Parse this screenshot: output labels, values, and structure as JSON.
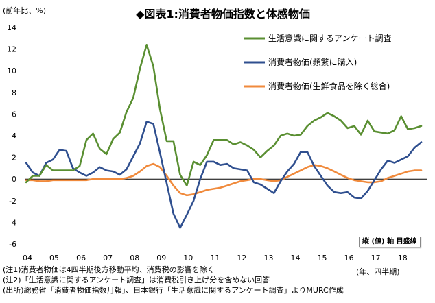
{
  "unit_label": "(前年比、%)",
  "axis_badge": "縦 (値) 軸 目盛線",
  "time_unit": "(年、四半期)",
  "notes": [
    "(注1)消費者物価は4四半期後方移動平均、消費税の影響を除く",
    "(注2)「生活意識に関するアンケート調査」は消費税引き上げ分を含めない回答",
    "(出所)総務省「消費者物価指数月報」、日本銀行「生活意識に関するアンケート調査」よりMURC作成"
  ],
  "chart_data": {
    "type": "line",
    "title": "◆図表1:消費者物価指数と体感物価",
    "x_tick_labels": [
      "04",
      "05",
      "06",
      "07",
      "08",
      "09",
      "10",
      "11",
      "12",
      "13",
      "14",
      "15",
      "16",
      "17",
      "18"
    ],
    "y_ticks": [
      14,
      12,
      10,
      8,
      6,
      4,
      2,
      0,
      -2,
      -4,
      -6
    ],
    "ylim": [
      -6,
      14
    ],
    "grid": false,
    "legend_position": "top-right",
    "x_start": "2004Q1",
    "series": [
      {
        "name": "生活意識に関するアンケート調査",
        "color": "#5a8f32",
        "values": [
          -0.3,
          0.3,
          0.3,
          1.3,
          0.8,
          0.8,
          0.8,
          0.8,
          1.2,
          3.6,
          4.2,
          2.8,
          2.3,
          3.7,
          4.3,
          6.2,
          7.5,
          10.2,
          12.4,
          10.4,
          6.4,
          3.5,
          3.5,
          0.4,
          -0.6,
          1.6,
          1.3,
          2.2,
          3.6,
          3.6,
          3.6,
          3.2,
          3.4,
          3.1,
          2.7,
          2.0,
          2.6,
          3.1,
          4.0,
          4.2,
          4.0,
          4.1,
          4.9,
          5.4,
          5.7,
          6.1,
          5.8,
          5.4,
          4.7,
          4.9,
          4.1,
          5.4,
          4.4,
          4.3,
          4.2,
          4.5,
          5.8,
          4.6,
          4.7,
          4.9
        ]
      },
      {
        "name": "消費者物価(頻繁に購入)",
        "color": "#2f4f8f",
        "values": [
          1.5,
          0.6,
          0.3,
          1.5,
          1.8,
          2.7,
          2.6,
          1.0,
          0.6,
          0.3,
          0.6,
          1.1,
          0.8,
          0.7,
          0.4,
          0.9,
          2.1,
          3.3,
          5.3,
          5.1,
          2.4,
          -0.4,
          -3.2,
          -4.5,
          -3.3,
          -2.0,
          0.0,
          1.6,
          1.6,
          1.3,
          1.4,
          1.0,
          0.9,
          0.8,
          -0.3,
          -0.5,
          -0.9,
          -1.3,
          -0.2,
          0.7,
          1.4,
          2.5,
          2.5,
          1.2,
          0.3,
          -0.6,
          -1.2,
          -1.3,
          -1.2,
          -1.7,
          -1.8,
          -1.1,
          -0.1,
          0.9,
          1.7,
          1.5,
          1.8,
          2.1,
          2.9,
          3.4
        ]
      },
      {
        "name": "消費者物価(生鮮食品を除く総合)",
        "color": "#f08a3c",
        "values": [
          -0.1,
          -0.1,
          -0.2,
          -0.2,
          -0.1,
          -0.1,
          -0.1,
          -0.1,
          -0.1,
          -0.1,
          0.0,
          0.0,
          0.0,
          0.0,
          0.0,
          0.1,
          0.3,
          0.7,
          1.2,
          1.4,
          1.1,
          0.3,
          -0.6,
          -1.3,
          -1.5,
          -1.4,
          -1.2,
          -1.0,
          -0.9,
          -0.8,
          -0.6,
          -0.4,
          -0.2,
          -0.1,
          0.0,
          0.0,
          -0.1,
          -0.2,
          -0.1,
          0.2,
          0.5,
          0.8,
          1.1,
          1.3,
          1.2,
          1.0,
          0.7,
          0.4,
          0.1,
          -0.1,
          -0.2,
          -0.3,
          -0.3,
          -0.2,
          0.1,
          0.3,
          0.5,
          0.7,
          0.8,
          0.8
        ]
      }
    ]
  }
}
